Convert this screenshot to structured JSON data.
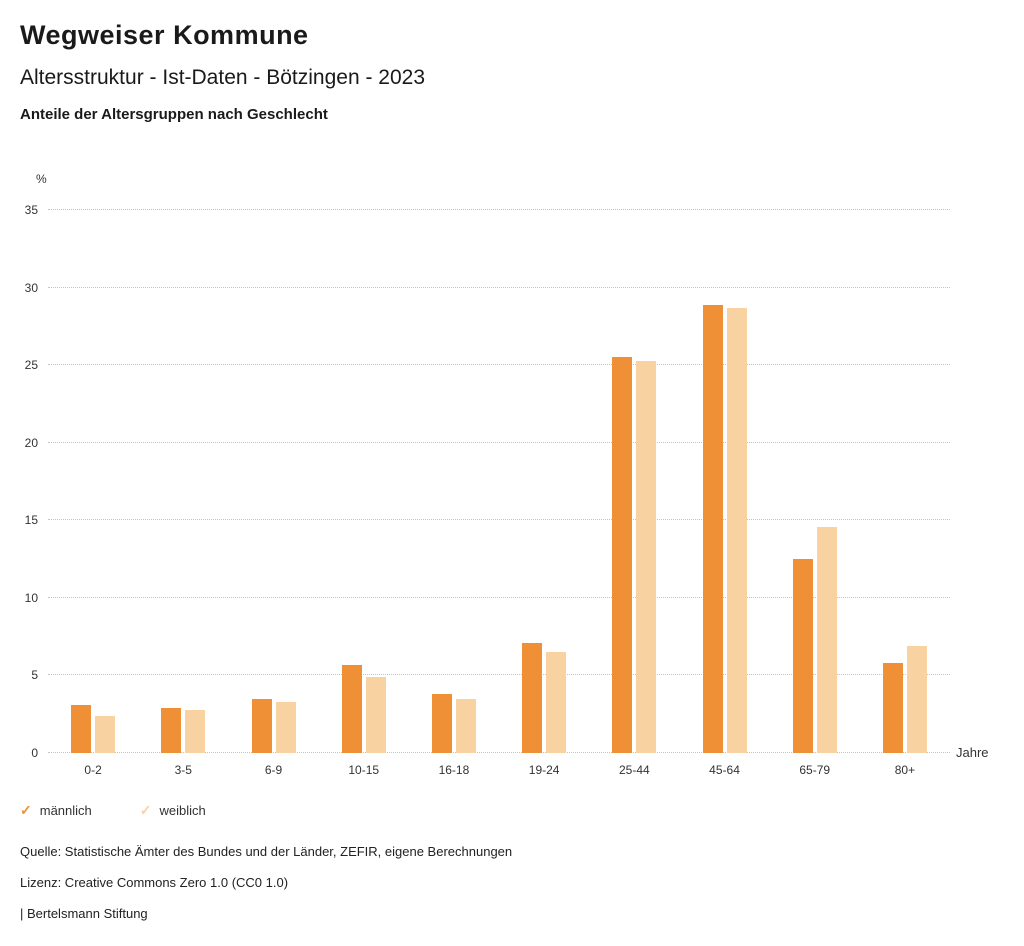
{
  "header": {
    "title": "Wegweiser Kommune",
    "subtitle": "Altersstruktur - Ist-Daten - Bötzingen - 2023",
    "heading": "Anteile der Altersgruppen nach Geschlecht"
  },
  "chart_data": {
    "type": "bar",
    "title": "Anteile der Altersgruppen nach Geschlecht",
    "categories": [
      "0-2",
      "3-5",
      "6-9",
      "10-15",
      "16-18",
      "19-24",
      "25-44",
      "45-64",
      "65-79",
      "80+"
    ],
    "series": [
      {
        "name": "männlich",
        "color": "#ef9036",
        "values": [
          3.1,
          2.9,
          3.5,
          5.7,
          3.8,
          7.1,
          25.5,
          28.9,
          12.5,
          5.8
        ]
      },
      {
        "name": "weiblich",
        "color": "#f9d2a2",
        "values": [
          2.4,
          2.8,
          3.3,
          4.9,
          3.5,
          6.5,
          25.3,
          28.7,
          14.6,
          6.9
        ]
      }
    ],
    "xlabel": "Jahre",
    "ylabel": "%",
    "ylim": [
      0,
      35
    ],
    "ytick_step": 5,
    "grid": "dotted-horizontal",
    "legend_position": "bottom-left"
  },
  "legend": {
    "items": [
      {
        "label": "männlich",
        "icon": "check",
        "color": "#ef9036"
      },
      {
        "label": "weiblich",
        "icon": "check",
        "color": "#f9d2a2"
      }
    ]
  },
  "footer": {
    "source": "Quelle: Statistische Ämter des Bundes und der Länder, ZEFIR, eigene Berechnungen",
    "license": "Lizenz: Creative Commons Zero 1.0 (CC0 1.0)",
    "attribution": "| Bertelsmann Stiftung"
  }
}
